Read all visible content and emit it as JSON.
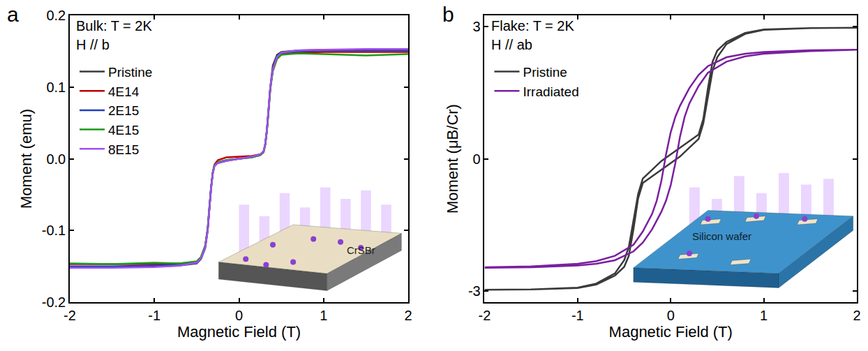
{
  "chart_data": [
    {
      "panel": "a",
      "type": "line",
      "annotations": [
        "Bulk: T = 2K",
        "H // b"
      ],
      "inset_label": "CrSBr",
      "x_label": "Magnetic Field (T)",
      "y_label": "Moment (emu)",
      "xlim": [
        -2,
        2
      ],
      "xticks": [
        -2,
        -1,
        0,
        1,
        2
      ],
      "ylim": [
        -0.2,
        0.2
      ],
      "yticks": [
        -0.2,
        -0.1,
        {
          "value": 0,
          "label": "0.0"
        },
        0.1,
        0.2
      ],
      "grid": false,
      "legend": "upper left",
      "series": [
        {
          "name": "Pristine",
          "color": "#3a3a3a",
          "x": [
            -2,
            -1.5,
            -1,
            -0.7,
            -0.5,
            -0.45,
            -0.4,
            -0.37,
            -0.35,
            -0.33,
            -0.31,
            -0.29,
            -0.25,
            -0.15,
            0,
            0.15,
            0.25,
            0.29,
            0.31,
            0.33,
            0.35,
            0.37,
            0.4,
            0.45,
            0.5,
            0.7,
            1,
            1.5,
            2
          ],
          "values": [
            -0.151,
            -0.151,
            -0.15,
            -0.149,
            -0.146,
            -0.14,
            -0.125,
            -0.1,
            -0.07,
            -0.04,
            -0.02,
            -0.01,
            -0.006,
            -0.003,
            0,
            0.003,
            0.006,
            0.01,
            0.02,
            0.04,
            0.07,
            0.1,
            0.13,
            0.145,
            0.149,
            0.151,
            0.152,
            0.152,
            0.152
          ]
        },
        {
          "name": "4E14",
          "color": "#c00000",
          "x": [
            -2,
            -1.5,
            -1,
            -0.7,
            -0.5,
            -0.45,
            -0.4,
            -0.37,
            -0.35,
            -0.33,
            -0.31,
            -0.29,
            -0.25,
            -0.15,
            0,
            0.15,
            0.25,
            0.29,
            0.31,
            0.33,
            0.35,
            0.37,
            0.4,
            0.45,
            0.5,
            0.7,
            1,
            1.5,
            2
          ],
          "values": [
            -0.147,
            -0.147,
            -0.147,
            -0.146,
            -0.144,
            -0.138,
            -0.122,
            -0.098,
            -0.068,
            -0.04,
            -0.02,
            -0.008,
            -0.002,
            0.002,
            0.003,
            0.004,
            0.006,
            0.01,
            0.02,
            0.04,
            0.068,
            0.098,
            0.125,
            0.14,
            0.146,
            0.148,
            0.149,
            0.149,
            0.149
          ]
        },
        {
          "name": "2E15",
          "color": "#1f3fbf",
          "x": [
            -2,
            -1.5,
            -1,
            -0.7,
            -0.5,
            -0.45,
            -0.4,
            -0.37,
            -0.35,
            -0.33,
            -0.31,
            -0.29,
            -0.25,
            -0.15,
            0,
            0.15,
            0.25,
            0.29,
            0.31,
            0.33,
            0.35,
            0.37,
            0.4,
            0.45,
            0.5,
            0.7,
            1,
            1.5,
            2
          ],
          "values": [
            -0.15,
            -0.15,
            -0.149,
            -0.148,
            -0.145,
            -0.139,
            -0.123,
            -0.099,
            -0.069,
            -0.04,
            -0.02,
            -0.009,
            -0.005,
            -0.002,
            0,
            0.002,
            0.005,
            0.009,
            0.02,
            0.04,
            0.069,
            0.099,
            0.124,
            0.142,
            0.148,
            0.15,
            0.151,
            0.151,
            0.151
          ]
        },
        {
          "name": "4E15",
          "color": "#1a9a1a",
          "x": [
            -2,
            -1.5,
            -1,
            -0.7,
            -0.5,
            -0.45,
            -0.4,
            -0.37,
            -0.35,
            -0.33,
            -0.31,
            -0.29,
            -0.25,
            -0.15,
            0,
            0.15,
            0.25,
            0.29,
            0.31,
            0.33,
            0.35,
            0.37,
            0.4,
            0.45,
            0.5,
            0.7,
            1,
            1.5,
            2
          ],
          "values": [
            -0.146,
            -0.147,
            -0.145,
            -0.146,
            -0.143,
            -0.137,
            -0.121,
            -0.097,
            -0.067,
            -0.039,
            -0.019,
            -0.009,
            -0.005,
            -0.002,
            0,
            0.002,
            0.005,
            0.009,
            0.019,
            0.039,
            0.067,
            0.097,
            0.122,
            0.139,
            0.145,
            0.147,
            0.146,
            0.144,
            0.146
          ]
        },
        {
          "name": "8E15",
          "color": "#a050f0",
          "x": [
            -2,
            -1.5,
            -1,
            -0.7,
            -0.5,
            -0.45,
            -0.4,
            -0.37,
            -0.35,
            -0.33,
            -0.31,
            -0.29,
            -0.25,
            -0.15,
            0,
            0.15,
            0.25,
            0.29,
            0.31,
            0.33,
            0.35,
            0.37,
            0.4,
            0.45,
            0.5,
            0.7,
            1,
            1.5,
            2
          ],
          "values": [
            -0.152,
            -0.152,
            -0.151,
            -0.149,
            -0.145,
            -0.139,
            -0.124,
            -0.1,
            -0.07,
            -0.041,
            -0.021,
            -0.01,
            -0.006,
            -0.003,
            0,
            0.003,
            0.006,
            0.01,
            0.021,
            0.041,
            0.07,
            0.1,
            0.125,
            0.142,
            0.148,
            0.151,
            0.152,
            0.153,
            0.153
          ]
        }
      ]
    },
    {
      "panel": "b",
      "type": "line",
      "annotations": [
        "Flake: T = 2K",
        "H // ab"
      ],
      "inset_label": "Silicon wafer",
      "x_label": "Magnetic Field (T)",
      "y_label": "Moment (μB/Cr)",
      "xlim": [
        -2,
        2
      ],
      "xticks": [
        -2,
        -1,
        0,
        1,
        2
      ],
      "ylim": [
        -3.25,
        3.25
      ],
      "yticks": [
        -3,
        0,
        3
      ],
      "grid": false,
      "legend": "upper left",
      "series": [
        {
          "name": "Pristine",
          "color": "#3a3a3a",
          "x": [
            -2,
            -1.5,
            -1,
            -0.8,
            -0.6,
            -0.5,
            -0.45,
            -0.4,
            -0.35,
            -0.3,
            -0.2,
            -0.1,
            0,
            0.1,
            0.2,
            0.3,
            0.35,
            0.4,
            0.45,
            0.5,
            0.6,
            0.8,
            1,
            1.5,
            2,
            2,
            1.5,
            1,
            0.8,
            0.6,
            0.5,
            0.45,
            0.4,
            0.35,
            0.3,
            0.2,
            0.1,
            0,
            -0.1,
            -0.2,
            -0.3,
            -0.35,
            -0.4,
            -0.45,
            -0.5,
            -0.6,
            -0.8,
            -1,
            -1.5,
            -2
          ],
          "values": [
            -2.97,
            -2.96,
            -2.93,
            -2.85,
            -2.65,
            -2.45,
            -2.2,
            -1.6,
            -0.9,
            -0.55,
            -0.4,
            -0.25,
            -0.1,
            0.05,
            0.25,
            0.45,
            0.8,
            1.4,
            2.0,
            2.3,
            2.6,
            2.83,
            2.92,
            2.96,
            2.97,
            2.97,
            2.96,
            2.93,
            2.85,
            2.65,
            2.45,
            2.2,
            1.6,
            0.9,
            0.55,
            0.4,
            0.25,
            0.1,
            -0.05,
            -0.25,
            -0.45,
            -0.8,
            -1.4,
            -2.0,
            -2.3,
            -2.6,
            -2.83,
            -2.92,
            -2.96,
            -2.97
          ]
        },
        {
          "name": "Irradiated",
          "color": "#7a1fa0",
          "x": [
            -2,
            -1.5,
            -1,
            -0.8,
            -0.6,
            -0.4,
            -0.3,
            -0.2,
            -0.1,
            -0.05,
            0,
            0.05,
            0.1,
            0.15,
            0.2,
            0.3,
            0.4,
            0.6,
            0.8,
            1,
            1.5,
            2,
            2,
            1.5,
            1,
            0.8,
            0.6,
            0.4,
            0.3,
            0.2,
            0.1,
            0.05,
            0,
            -0.05,
            -0.1,
            -0.15,
            -0.2,
            -0.3,
            -0.4,
            -0.6,
            -0.8,
            -1,
            -1.5,
            -2
          ],
          "values": [
            -2.47,
            -2.46,
            -2.42,
            -2.38,
            -2.3,
            -2.1,
            -1.9,
            -1.6,
            -1.2,
            -0.95,
            -0.6,
            -0.1,
            0.5,
            0.95,
            1.25,
            1.65,
            1.95,
            2.2,
            2.32,
            2.38,
            2.44,
            2.46,
            2.47,
            2.46,
            2.42,
            2.38,
            2.3,
            2.1,
            1.9,
            1.6,
            1.2,
            0.95,
            0.6,
            0.1,
            -0.5,
            -0.95,
            -1.25,
            -1.65,
            -1.95,
            -2.2,
            -2.32,
            -2.38,
            -2.44,
            -2.46
          ]
        }
      ]
    }
  ]
}
